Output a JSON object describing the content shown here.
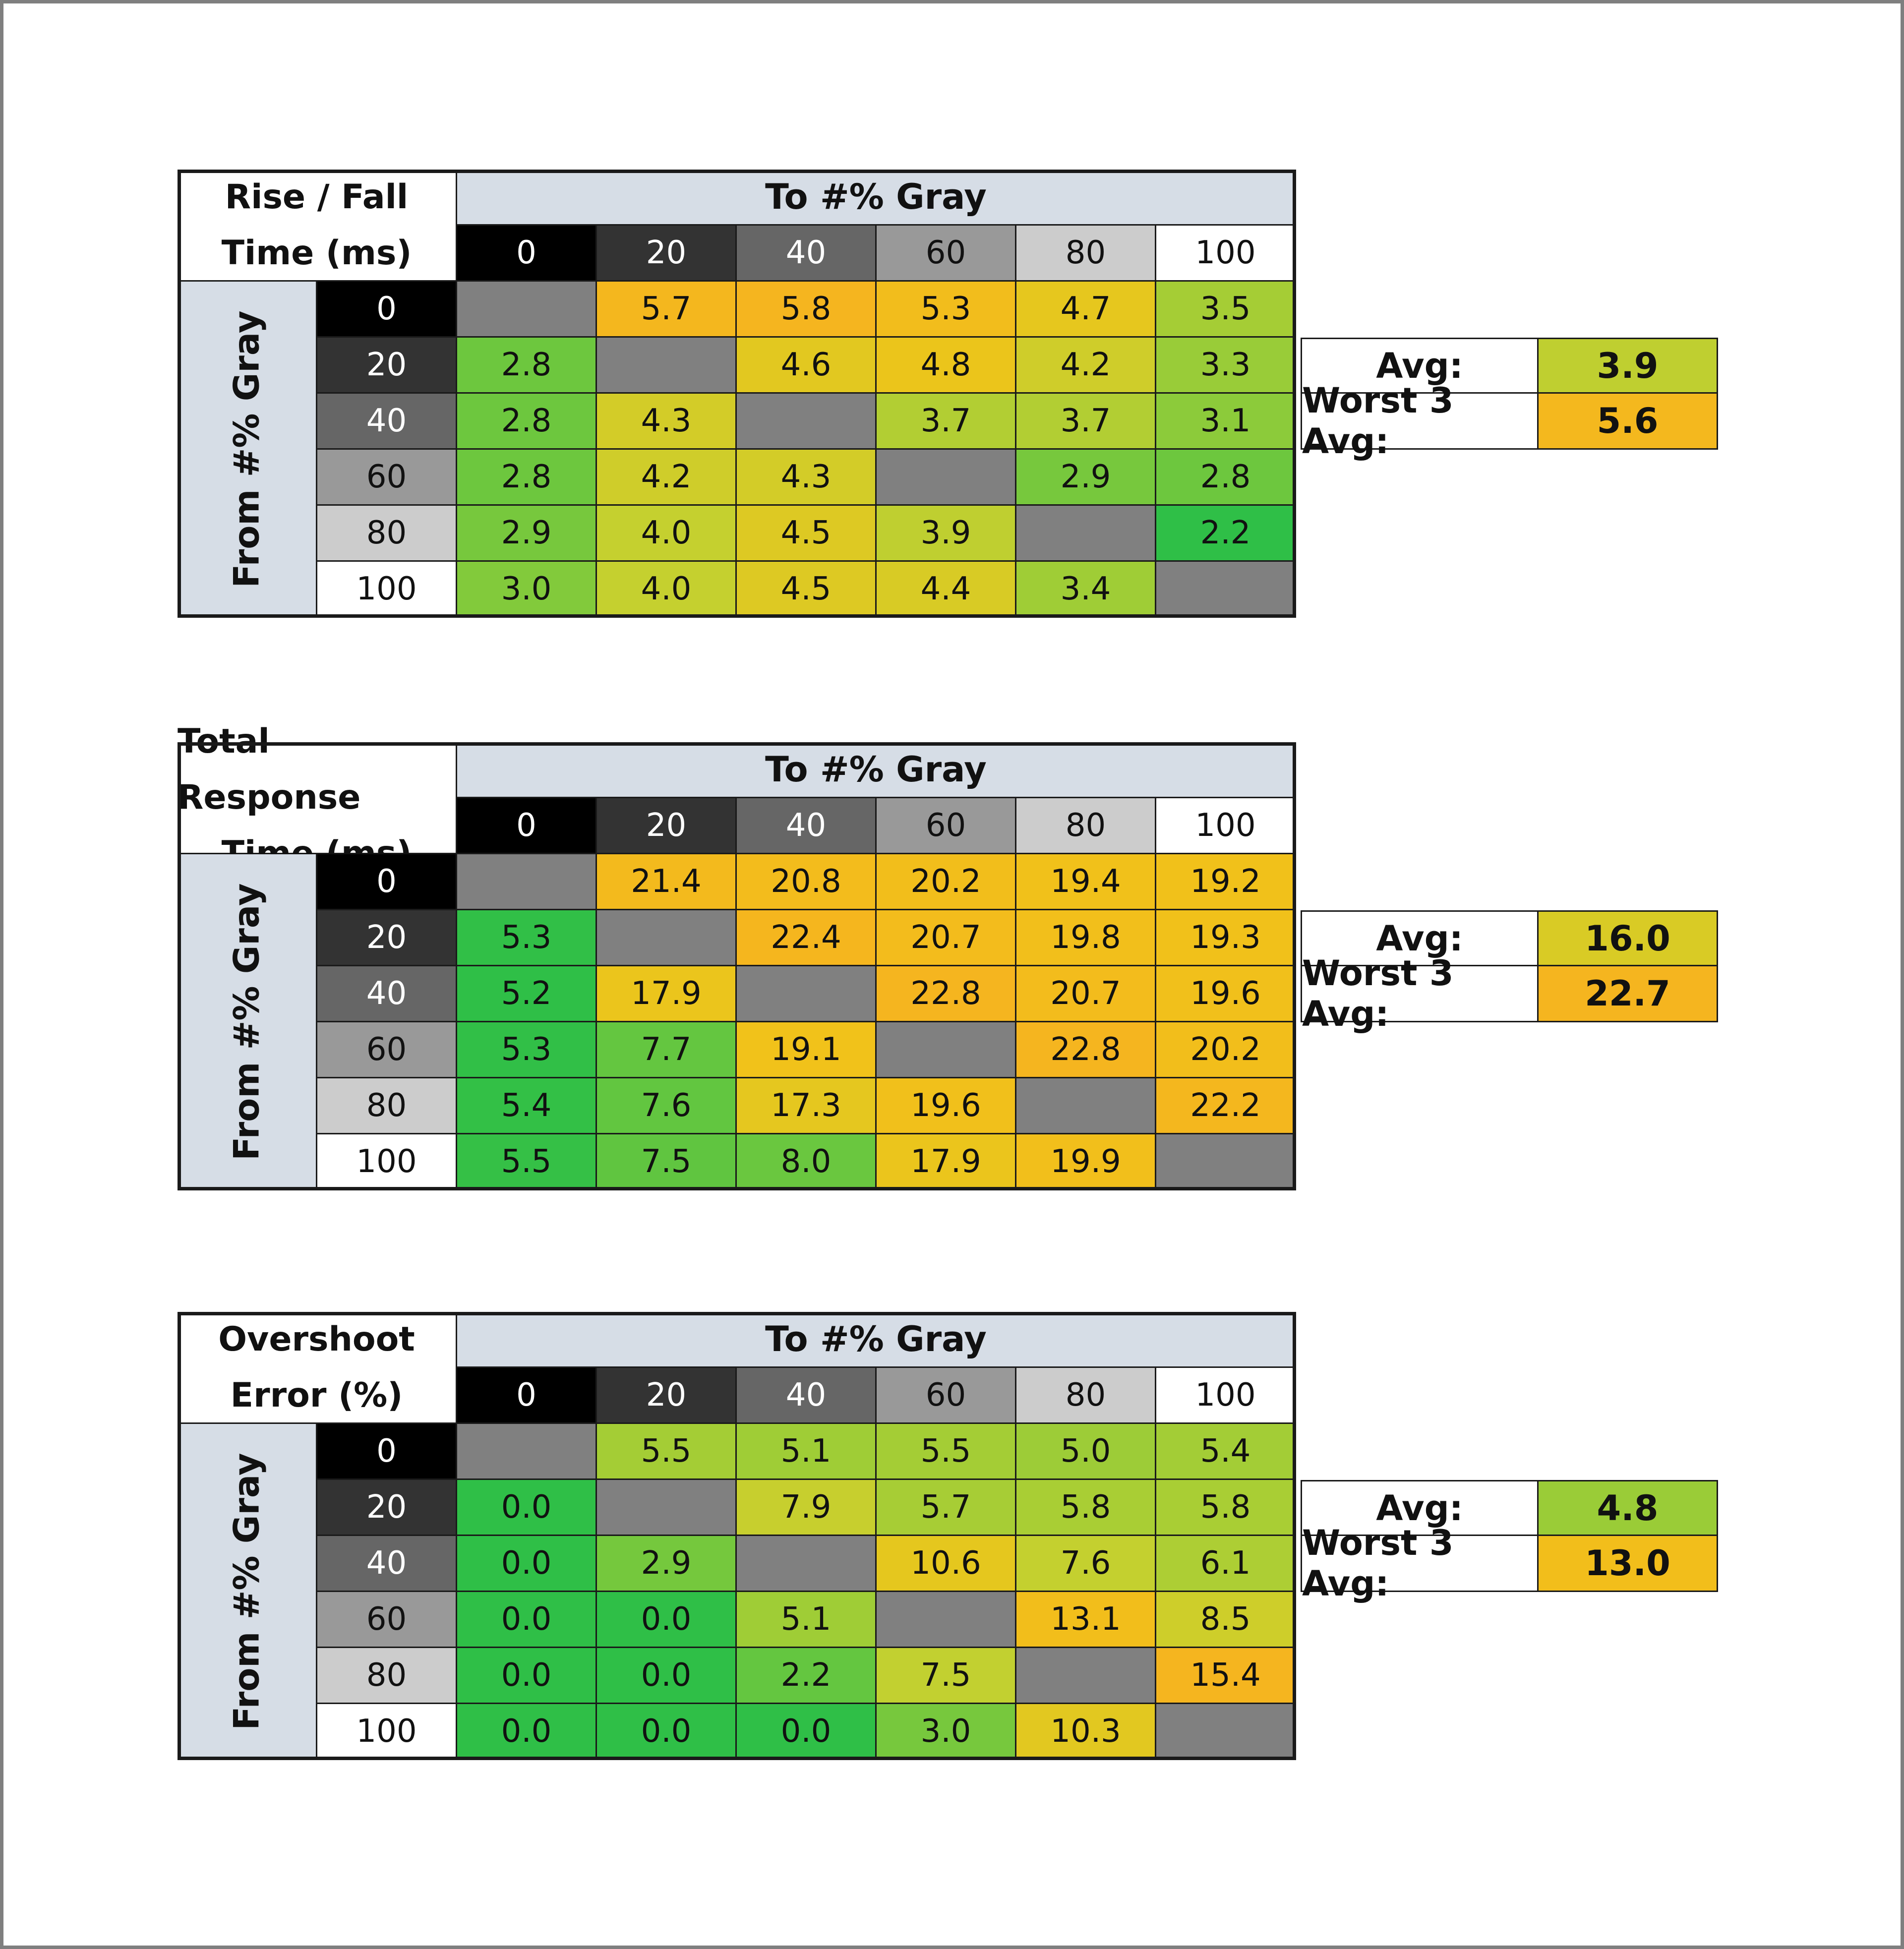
{
  "chart_data": [
    {
      "type": "table",
      "title_lines": [
        "Rise / Fall",
        "Time (ms)"
      ],
      "to_label": "To #% Gray",
      "from_label": "From #% Gray",
      "levels": [
        "0",
        "20",
        "40",
        "60",
        "80",
        "100"
      ],
      "rows": [
        [
          null,
          "5.7",
          "5.8",
          "5.3",
          "4.7",
          "3.5"
        ],
        [
          "2.8",
          null,
          "4.6",
          "4.8",
          "4.2",
          "3.3"
        ],
        [
          "2.8",
          "4.3",
          null,
          "3.7",
          "3.7",
          "3.1"
        ],
        [
          "2.8",
          "4.2",
          "4.3",
          null,
          "2.9",
          "2.8"
        ],
        [
          "2.9",
          "4.0",
          "4.5",
          "3.9",
          null,
          "2.2"
        ],
        [
          "3.0",
          "4.0",
          "4.5",
          "4.4",
          "3.4",
          null
        ]
      ],
      "avg_label": "Avg:",
      "avg": "3.9",
      "worst3_label": "Worst 3 Avg:",
      "worst3": "5.6"
    },
    {
      "type": "table",
      "title_lines": [
        "Total Response",
        "Time (ms)"
      ],
      "to_label": "To #% Gray",
      "from_label": "From #% Gray",
      "levels": [
        "0",
        "20",
        "40",
        "60",
        "80",
        "100"
      ],
      "rows": [
        [
          null,
          "21.4",
          "20.8",
          "20.2",
          "19.4",
          "19.2"
        ],
        [
          "5.3",
          null,
          "22.4",
          "20.7",
          "19.8",
          "19.3"
        ],
        [
          "5.2",
          "17.9",
          null,
          "22.8",
          "20.7",
          "19.6"
        ],
        [
          "5.3",
          "7.7",
          "19.1",
          null,
          "22.8",
          "20.2"
        ],
        [
          "5.4",
          "7.6",
          "17.3",
          "19.6",
          null,
          "22.2"
        ],
        [
          "5.5",
          "7.5",
          "8.0",
          "17.9",
          "19.9",
          null
        ]
      ],
      "avg_label": "Avg:",
      "avg": "16.0",
      "worst3_label": "Worst 3 Avg:",
      "worst3": "22.7"
    },
    {
      "type": "table",
      "title_lines": [
        "Overshoot",
        "Error (%)"
      ],
      "to_label": "To #% Gray",
      "from_label": "From #% Gray",
      "levels": [
        "0",
        "20",
        "40",
        "60",
        "80",
        "100"
      ],
      "rows": [
        [
          null,
          "5.5",
          "5.1",
          "5.5",
          "5.0",
          "5.4"
        ],
        [
          "0.0",
          null,
          "7.9",
          "5.7",
          "5.8",
          "5.8"
        ],
        [
          "0.0",
          "2.9",
          null,
          "10.6",
          "7.6",
          "6.1"
        ],
        [
          "0.0",
          "0.0",
          "5.1",
          null,
          "13.1",
          "8.5"
        ],
        [
          "0.0",
          "0.0",
          "2.2",
          "7.5",
          null,
          "15.4"
        ],
        [
          "0.0",
          "0.0",
          "0.0",
          "3.0",
          "10.3",
          null
        ]
      ],
      "avg_label": "Avg:",
      "avg": "4.8",
      "worst3_label": "Worst 3 Avg:",
      "worst3": "13.0"
    }
  ],
  "colors": {
    "level_bg": [
      "#000000",
      "#333333",
      "#666666",
      "#999999",
      "#cccccc",
      "#ffffff"
    ],
    "level_fg": [
      "#ffffff",
      "#ffffff",
      "#ffffff",
      "#111111",
      "#111111",
      "#111111"
    ],
    "diagonal": "#808080",
    "header": "#d6dde6",
    "scale_stops": [
      "#2fbf47",
      "#8ccb3a",
      "#c5d02f",
      "#f0c419",
      "#f5b51f"
    ]
  }
}
